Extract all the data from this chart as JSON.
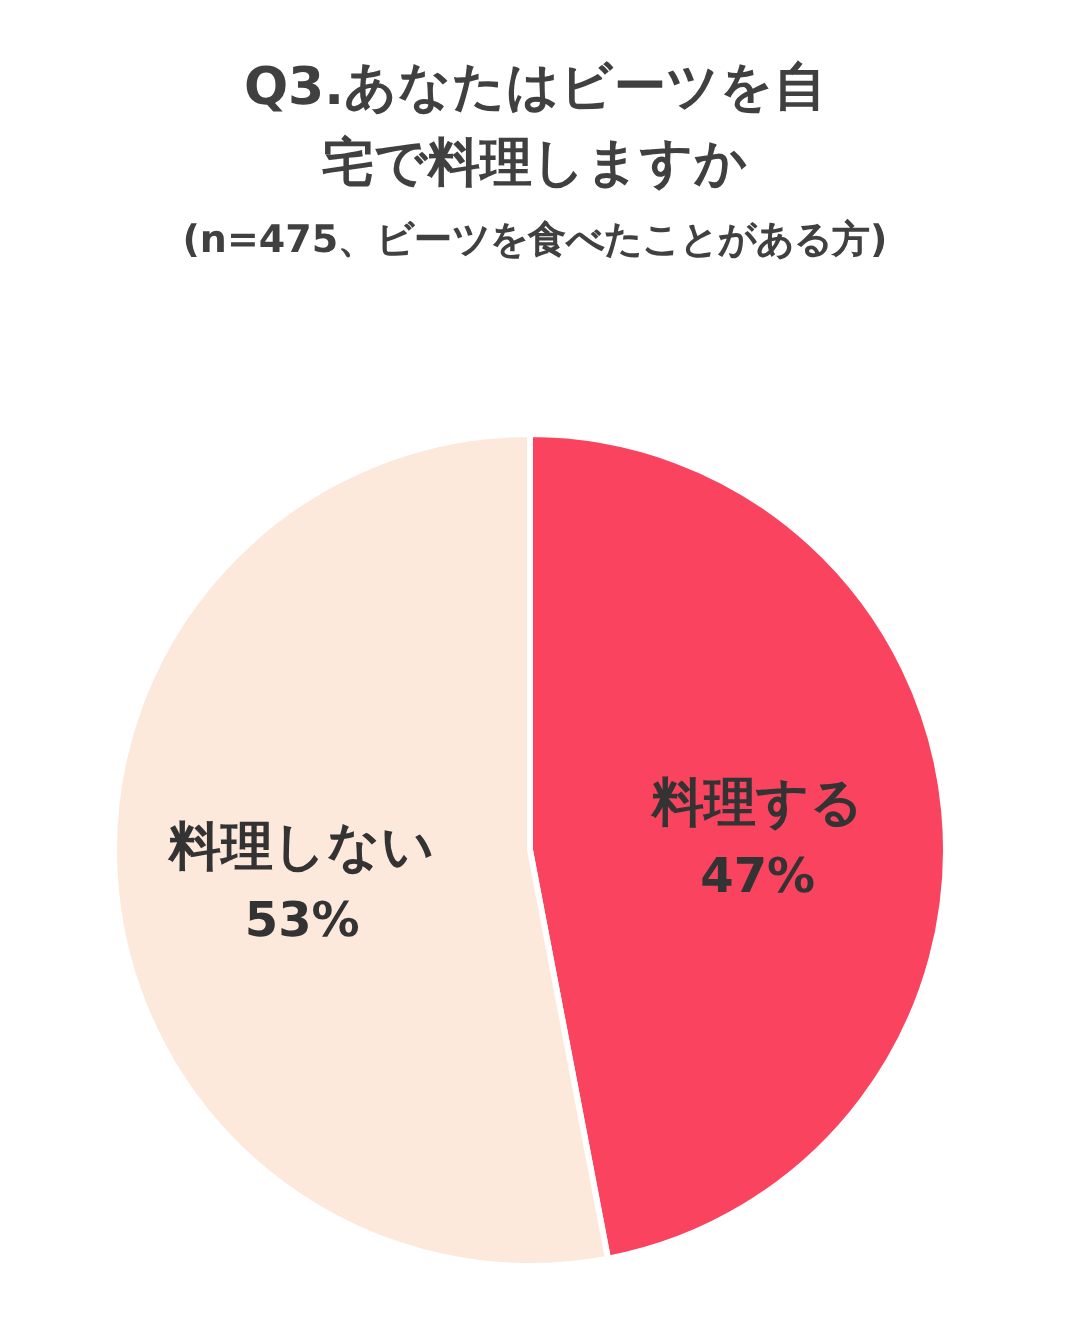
{
  "chart_data": {
    "type": "pie",
    "title": "Q3.あなたはビーツを自宅で料理しますか",
    "subtitle": "(n=475、ビーツを食べたことがある方)",
    "categories": [
      "料理する",
      "料理しない"
    ],
    "values": [
      47,
      53
    ],
    "colors": [
      "#f9435f",
      "#fde9dc"
    ],
    "value_labels": [
      "47%",
      "53%"
    ],
    "legend": false
  }
}
